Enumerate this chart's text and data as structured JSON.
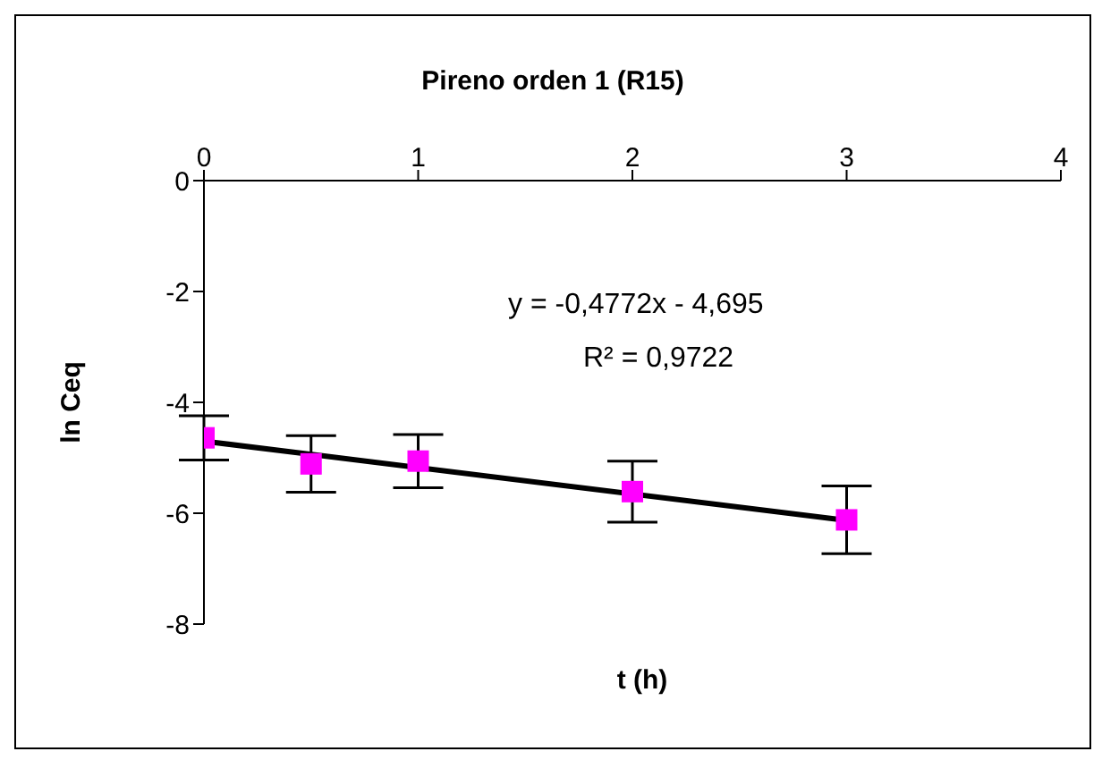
{
  "chart_data": {
    "type": "scatter",
    "title": "Pireno orden 1 (R15)",
    "xlabel": "t (h)",
    "ylabel": "ln Ceq",
    "x": [
      0,
      0.5,
      1,
      2,
      3
    ],
    "series": [
      {
        "color": "#ff00ff",
        "marker": "square",
        "values": [
          -4.64,
          -5.11,
          -5.06,
          -5.61,
          -6.12
        ],
        "errors": [
          0.4,
          0.51,
          0.48,
          0.55,
          0.61
        ]
      },
      {
        "type": "line",
        "color": "#000000",
        "line_style": "solid",
        "marker": "none",
        "x": [
          0,
          3
        ],
        "values": [
          -4.7,
          -6.13
        ]
      }
    ],
    "annotations": [
      "y = -0,4772x - 4,695",
      "R² = 0,9722"
    ],
    "xlim": [
      0,
      4
    ],
    "xticks": [
      0,
      1,
      2,
      3,
      4
    ],
    "ylim": [
      -8,
      0
    ],
    "yticks": [
      0,
      -2,
      -4,
      -6,
      -8
    ],
    "grid": false,
    "legend": false
  }
}
